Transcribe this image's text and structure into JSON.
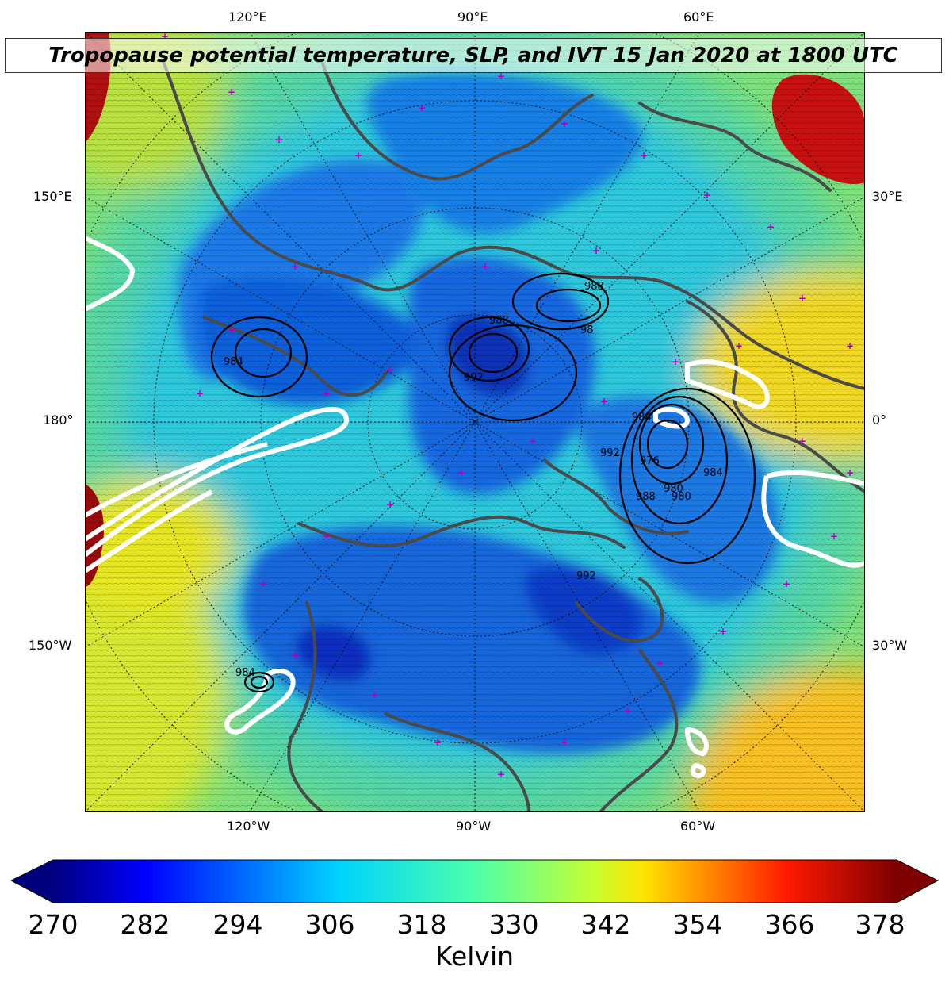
{
  "title": "Tropopause potential temperature, SLP, and IVT 15 Jan 2020 at 1800 UTC",
  "top_lon_labels": [
    "120°E",
    "90°E",
    "60°E"
  ],
  "bottom_lon_labels": [
    "120°W",
    "90°W",
    "60°W"
  ],
  "left_lat_labels": [
    "150°E",
    "180°",
    "150°W"
  ],
  "right_lat_labels": [
    "30°E",
    "0°",
    "30°W"
  ],
  "colorbar": {
    "ticks": [
      "270",
      "282",
      "294",
      "306",
      "318",
      "330",
      "342",
      "354",
      "366",
      "378"
    ],
    "label": "Kelvin",
    "colormap": "jet",
    "extend": "both"
  },
  "slp_contour_labels": [
    "988",
    "98",
    "988",
    "984",
    "992",
    "984",
    "980",
    "976",
    "980",
    "984",
    "992",
    "992",
    "988",
    "984"
  ],
  "colors": {
    "coast": "#4a4a4a",
    "station_marker": "#b000c0",
    "ivt_contour": "#ffffff",
    "slp_contour": "#000000"
  }
}
